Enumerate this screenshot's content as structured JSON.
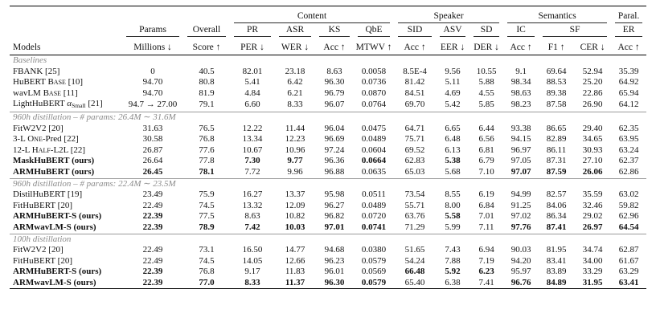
{
  "header": {
    "groups": [
      {
        "label": "Content",
        "span": 4
      },
      {
        "label": "Speaker",
        "span": 3
      },
      {
        "label": "Semantics",
        "span": 3
      },
      {
        "label": "Paral.",
        "span": 1
      }
    ],
    "tasks": [
      "Params",
      "Overall",
      "PR",
      "ASR",
      "KS",
      "QbE",
      "SID",
      "ASV",
      "SD",
      "IC",
      "SF",
      "ER"
    ],
    "metrics": [
      "Models",
      "Millions ↓",
      "Score ↑",
      "PER ↓",
      "WER ↓",
      "Acc ↑",
      "MTWV ↑",
      "Acc ↑",
      "EER ↓",
      "DER ↓",
      "Acc ↑",
      "F1 ↑",
      "CER ↓",
      "Acc ↑"
    ]
  },
  "sections": [
    {
      "label": "Baselines",
      "rows": [
        {
          "name_parts": [
            [
              "FBANK [25]",
              ""
            ]
          ],
          "bold_name": false,
          "values": [
            "0",
            "40.5",
            "82.01",
            "23.18",
            "8.63",
            "0.0058",
            "8.5E-4",
            "9.56",
            "10.55",
            "9.1",
            "69.64",
            "52.94",
            "35.39"
          ],
          "bold": []
        },
        {
          "name_parts": [
            [
              "HuBERT ",
              ""
            ],
            [
              "Base",
              "sc"
            ],
            [
              " [10]",
              ""
            ]
          ],
          "bold_name": false,
          "values": [
            "94.70",
            "80.8",
            "5.41",
            "6.42",
            "96.30",
            "0.0736",
            "81.42",
            "5.11",
            "5.88",
            "98.34",
            "88.53",
            "25.20",
            "64.92"
          ],
          "bold": []
        },
        {
          "name_parts": [
            [
              "wavLM ",
              ""
            ],
            [
              "Base",
              "sc"
            ],
            [
              " [11]",
              ""
            ]
          ],
          "bold_name": false,
          "values": [
            "94.70",
            "81.9",
            "4.84",
            "6.21",
            "96.79",
            "0.0870",
            "84.51",
            "4.69",
            "4.55",
            "98.63",
            "89.38",
            "22.86",
            "65.94"
          ],
          "bold": []
        },
        {
          "name_parts": [
            [
              "LightHuBERT ",
              ""
            ],
            [
              "α",
              "it"
            ],
            [
              "Small",
              "sub"
            ],
            [
              " [21]",
              ""
            ]
          ],
          "bold_name": false,
          "values": [
            "94.7 → 27.00",
            "79.1",
            "6.60",
            "8.33",
            "96.07",
            "0.0764",
            "69.70",
            "5.42",
            "5.85",
            "98.23",
            "87.58",
            "26.90",
            "64.12"
          ],
          "bold": []
        }
      ]
    },
    {
      "label": "960h distillation – # params: 26.4M ∼ 31.6M",
      "rows": [
        {
          "name_parts": [
            [
              "FitW2V2 [20]",
              ""
            ]
          ],
          "bold_name": false,
          "values": [
            "31.63",
            "76.5",
            "12.22",
            "11.44",
            "96.04",
            "0.0475",
            "64.71",
            "6.65",
            "6.44",
            "93.38",
            "86.65",
            "29.40",
            "62.35"
          ],
          "bold": []
        },
        {
          "name_parts": [
            [
              "3-L ",
              ""
            ],
            [
              "One",
              "sc"
            ],
            [
              "-Pred [22]",
              ""
            ]
          ],
          "bold_name": false,
          "values": [
            "30.58",
            "76.8",
            "13.34",
            "12.23",
            "96.69",
            "0.0489",
            "75.71",
            "6.48",
            "6.56",
            "94.15",
            "82.89",
            "34.65",
            "63.95"
          ],
          "bold": []
        },
        {
          "name_parts": [
            [
              "12-L ",
              ""
            ],
            [
              "Half",
              "sc"
            ],
            [
              "-L2L [22]",
              ""
            ]
          ],
          "bold_name": false,
          "values": [
            "26.87",
            "77.6",
            "10.67",
            "10.96",
            "97.24",
            "0.0604",
            "69.52",
            "6.13",
            "6.81",
            "96.97",
            "86.11",
            "30.93",
            "63.24"
          ],
          "bold": []
        },
        {
          "name_parts": [
            [
              "MaskHuBERT (ours)",
              ""
            ]
          ],
          "bold_name": true,
          "values": [
            "26.64",
            "77.8",
            "7.30",
            "9.77",
            "96.36",
            "0.0664",
            "62.83",
            "5.38",
            "6.79",
            "97.05",
            "87.31",
            "27.10",
            "62.37"
          ],
          "bold": [
            2,
            3,
            5,
            7
          ]
        },
        {
          "name_parts": [
            [
              "ARMHuBERT (ours)",
              ""
            ]
          ],
          "bold_name": true,
          "values": [
            "26.45",
            "78.1",
            "7.72",
            "9.96",
            "96.88",
            "0.0635",
            "65.03",
            "5.68",
            "7.10",
            "97.07",
            "87.59",
            "26.06",
            "62.86"
          ],
          "bold": [
            0,
            1,
            9,
            10,
            11
          ]
        }
      ]
    },
    {
      "label": "960h distillation – # params: 22.4M ∼ 23.5M",
      "rows": [
        {
          "name_parts": [
            [
              "DistilHuBERT [19]",
              ""
            ]
          ],
          "bold_name": false,
          "values": [
            "23.49",
            "75.9",
            "16.27",
            "13.37",
            "95.98",
            "0.0511",
            "73.54",
            "8.55",
            "6.19",
            "94.99",
            "82.57",
            "35.59",
            "63.02"
          ],
          "bold": []
        },
        {
          "name_parts": [
            [
              "FitHuBERT [20]",
              ""
            ]
          ],
          "bold_name": false,
          "values": [
            "22.49",
            "74.5",
            "13.32",
            "12.09",
            "96.27",
            "0.0489",
            "55.71",
            "8.00",
            "6.84",
            "91.25",
            "84.06",
            "32.46",
            "59.82"
          ],
          "bold": []
        },
        {
          "name_parts": [
            [
              "ARMHuBERT-S (ours)",
              ""
            ]
          ],
          "bold_name": true,
          "values": [
            "22.39",
            "77.5",
            "8.63",
            "10.82",
            "96.82",
            "0.0720",
            "63.76",
            "5.58",
            "7.01",
            "97.02",
            "86.34",
            "29.02",
            "62.96"
          ],
          "bold": [
            0,
            7
          ]
        },
        {
          "name_parts": [
            [
              "ARMwavLM-S (ours)",
              ""
            ]
          ],
          "bold_name": true,
          "values": [
            "22.39",
            "78.9",
            "7.42",
            "10.03",
            "97.01",
            "0.0741",
            "71.29",
            "5.99",
            "7.11",
            "97.76",
            "87.41",
            "26.97",
            "64.54"
          ],
          "bold": [
            0,
            1,
            2,
            3,
            4,
            5,
            9,
            10,
            11,
            12
          ]
        }
      ]
    },
    {
      "label": "100h distillation",
      "rows": [
        {
          "name_parts": [
            [
              "FitW2V2 [20]",
              ""
            ]
          ],
          "bold_name": false,
          "values": [
            "22.49",
            "73.1",
            "16.50",
            "14.77",
            "94.68",
            "0.0380",
            "51.65",
            "7.43",
            "6.94",
            "90.03",
            "81.95",
            "34.74",
            "62.87"
          ],
          "bold": []
        },
        {
          "name_parts": [
            [
              "FitHuBERT [20]",
              ""
            ]
          ],
          "bold_name": false,
          "values": [
            "22.49",
            "74.5",
            "14.05",
            "12.66",
            "96.23",
            "0.0579",
            "54.24",
            "7.88",
            "7.19",
            "94.20",
            "83.41",
            "34.00",
            "61.67"
          ],
          "bold": []
        },
        {
          "name_parts": [
            [
              "ARMHuBERT-S (ours)",
              ""
            ]
          ],
          "bold_name": true,
          "values": [
            "22.39",
            "76.8",
            "9.17",
            "11.83",
            "96.01",
            "0.0569",
            "66.48",
            "5.92",
            "6.23",
            "95.97",
            "83.89",
            "33.29",
            "63.29"
          ],
          "bold": [
            0,
            6,
            7,
            8
          ]
        },
        {
          "name_parts": [
            [
              "ARMwavLM-S (ours)",
              ""
            ]
          ],
          "bold_name": true,
          "values": [
            "22.39",
            "77.0",
            "8.33",
            "11.37",
            "96.30",
            "0.0579",
            "65.40",
            "6.38",
            "7.41",
            "96.76",
            "84.89",
            "31.95",
            "63.41"
          ],
          "bold": [
            0,
            1,
            2,
            3,
            4,
            5,
            9,
            10,
            11,
            12
          ]
        }
      ]
    }
  ]
}
